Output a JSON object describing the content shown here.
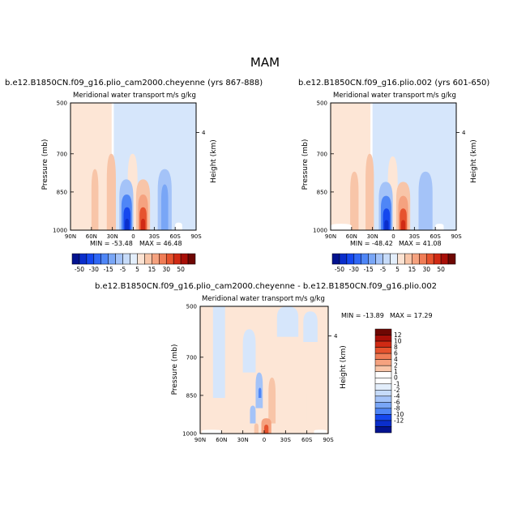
{
  "figure": {
    "title": "MAM"
  },
  "chart_data": [
    {
      "type": "heatmap",
      "panel": "upper-left",
      "title": "b.e12.B1850CN.f09_g16.plio_cam2000.cheyenne (yrs 867-888)",
      "subtitle_left": "Meridional water transport",
      "subtitle_right": "m/s g/kg",
      "xlabel": "",
      "ylabel": "Pressure (mb)",
      "right_label": "Height (km)",
      "x_ticks": [
        "90N",
        "60N",
        "30N",
        "0",
        "30S",
        "60S",
        "90S"
      ],
      "x_values": [
        90,
        60,
        30,
        0,
        -30,
        -60,
        -90
      ],
      "y_ticks": [
        "500",
        "700",
        "850",
        "1000"
      ],
      "y_values": [
        500,
        700,
        850,
        1000
      ],
      "ylim": [
        500,
        1000
      ],
      "right_ticks": [
        "4"
      ],
      "right_tick_pressure": [
        616
      ],
      "min_text": "MIN = -53.48",
      "max_text": "MAX =  46.48",
      "min": -53.48,
      "max": 46.48,
      "features": [
        {
          "lat": 90,
          "lat2": 31,
          "p": 500,
          "p2": 1000,
          "level": 1
        },
        {
          "lat": 28,
          "lat2": -90,
          "p": 500,
          "p2": 1000,
          "level": -1
        },
        {
          "lat": 60,
          "lat2": 50,
          "p": 760,
          "p2": 1000,
          "level": 2
        },
        {
          "lat": 38,
          "lat2": 25,
          "p": 700,
          "p2": 1000,
          "level": 2
        },
        {
          "lat": 8,
          "lat2": -6,
          "p": 700,
          "p2": 1000,
          "level": 1
        },
        {
          "lat": -35,
          "lat2": -55,
          "p": 760,
          "p2": 1000,
          "level": -2
        },
        {
          "lat": -40,
          "lat2": -50,
          "p": 820,
          "p2": 1000,
          "level": -3
        },
        {
          "lat": 20,
          "lat2": 0,
          "p": 800,
          "p2": 1000,
          "level": -2
        },
        {
          "lat": 17,
          "lat2": 2,
          "p": 860,
          "p2": 1000,
          "level": -4
        },
        {
          "lat": 14,
          "lat2": 4,
          "p": 910,
          "p2": 1000,
          "level": -6
        },
        {
          "lat": 12,
          "lat2": 6,
          "p": 955,
          "p2": 1000,
          "level": -8
        },
        {
          "lat": -4,
          "lat2": -24,
          "p": 800,
          "p2": 1000,
          "level": 2
        },
        {
          "lat": -7,
          "lat2": -21,
          "p": 860,
          "p2": 1000,
          "level": 4
        },
        {
          "lat": -9,
          "lat2": -19,
          "p": 910,
          "p2": 1000,
          "level": 6
        },
        {
          "lat": -11,
          "lat2": -17,
          "p": 955,
          "p2": 1000,
          "level": 8
        },
        {
          "lat": -60,
          "lat2": -70,
          "p": 970,
          "p2": 1000,
          "level": 0
        }
      ]
    },
    {
      "type": "heatmap",
      "panel": "upper-right",
      "title": "b.e12.B1850CN.f09_g16.plio.002 (yrs 601-650)",
      "subtitle_left": "Meridional water transport",
      "subtitle_right": "m/s g/kg",
      "xlabel": "",
      "ylabel": "Pressure (mb)",
      "right_label": "Height (km)",
      "x_ticks": [
        "90N",
        "60N",
        "30N",
        "0",
        "30S",
        "60S",
        "90S"
      ],
      "x_values": [
        90,
        60,
        30,
        0,
        -30,
        -60,
        -90
      ],
      "y_ticks": [
        "500",
        "700",
        "850",
        "1000"
      ],
      "y_values": [
        500,
        700,
        850,
        1000
      ],
      "ylim": [
        500,
        1000
      ],
      "right_ticks": [
        "4"
      ],
      "right_tick_pressure": [
        616
      ],
      "min_text": "MIN = -48.42",
      "max_text": "MAX =  41.08",
      "min": -48.42,
      "max": 41.08,
      "features": [
        {
          "lat": 90,
          "lat2": 33,
          "p": 500,
          "p2": 1000,
          "level": 1
        },
        {
          "lat": 30,
          "lat2": -90,
          "p": 500,
          "p2": 1000,
          "level": -1
        },
        {
          "lat": 62,
          "lat2": 50,
          "p": 770,
          "p2": 1000,
          "level": 2
        },
        {
          "lat": 40,
          "lat2": 28,
          "p": 700,
          "p2": 1000,
          "level": 2
        },
        {
          "lat": 8,
          "lat2": -6,
          "p": 710,
          "p2": 1000,
          "level": 1
        },
        {
          "lat": -36,
          "lat2": -56,
          "p": 770,
          "p2": 1000,
          "level": -2
        },
        {
          "lat": 21,
          "lat2": 1,
          "p": 810,
          "p2": 1000,
          "level": -2
        },
        {
          "lat": 18,
          "lat2": 3,
          "p": 865,
          "p2": 1000,
          "level": -4
        },
        {
          "lat": 15,
          "lat2": 5,
          "p": 915,
          "p2": 1000,
          "level": -6
        },
        {
          "lat": 13,
          "lat2": 7,
          "p": 960,
          "p2": 1000,
          "level": -8
        },
        {
          "lat": -4,
          "lat2": -24,
          "p": 810,
          "p2": 1000,
          "level": 2
        },
        {
          "lat": -7,
          "lat2": -21,
          "p": 865,
          "p2": 1000,
          "level": 4
        },
        {
          "lat": -9,
          "lat2": -19,
          "p": 915,
          "p2": 1000,
          "level": 6
        },
        {
          "lat": -11,
          "lat2": -17,
          "p": 960,
          "p2": 1000,
          "level": 8
        },
        {
          "lat": 90,
          "lat2": 60,
          "p": 975,
          "p2": 1000,
          "level": 0
        },
        {
          "lat": -60,
          "lat2": -72,
          "p": 975,
          "p2": 1000,
          "level": 0
        }
      ]
    },
    {
      "type": "heatmap",
      "panel": "bottom-difference",
      "title": "b.e12.B1850CN.f09_g16.plio_cam2000.cheyenne - b.e12.B1850CN.f09_g16.plio.002",
      "subtitle_left": "Meridional water transport",
      "subtitle_right": "m/s g/kg",
      "xlabel": "",
      "ylabel": "Pressure (mb)",
      "right_label": "Height (km)",
      "x_ticks": [
        "90N",
        "60N",
        "30N",
        "0",
        "30S",
        "60S",
        "90S"
      ],
      "x_values": [
        90,
        60,
        30,
        0,
        -30,
        -60,
        -90
      ],
      "y_ticks": [
        "500",
        "700",
        "850",
        "1000"
      ],
      "y_values": [
        500,
        700,
        850,
        1000
      ],
      "ylim": [
        500,
        1000
      ],
      "right_ticks": [
        "4"
      ],
      "right_tick_pressure": [
        616
      ],
      "min_text": "MIN = -13.89",
      "max_text": "MAX =  17.29",
      "min": -13.89,
      "max": 17.29,
      "features": [
        {
          "lat": 90,
          "lat2": -90,
          "p": 500,
          "p2": 1000,
          "level": 1
        },
        {
          "lat": 72,
          "lat2": 55,
          "p": 500,
          "p2": 860,
          "level": -1
        },
        {
          "lat": -18,
          "lat2": -48,
          "p": 500,
          "p2": 620,
          "level": -1
        },
        {
          "lat": -55,
          "lat2": -75,
          "p": 520,
          "p2": 640,
          "level": -1
        },
        {
          "lat": 30,
          "lat2": 12,
          "p": 590,
          "p2": 760,
          "level": -1
        },
        {
          "lat": 12,
          "lat2": 2,
          "p": 760,
          "p2": 900,
          "level": -2
        },
        {
          "lat": 8,
          "lat2": 4,
          "p": 820,
          "p2": 860,
          "level": -4
        },
        {
          "lat": -6,
          "lat2": -16,
          "p": 780,
          "p2": 960,
          "level": 2
        },
        {
          "lat": -35,
          "lat2": -60,
          "p": 780,
          "p2": 960,
          "level": 1
        },
        {
          "lat": 20,
          "lat2": 12,
          "p": 890,
          "p2": 960,
          "level": -2
        },
        {
          "lat": 4,
          "lat2": -10,
          "p": 940,
          "p2": 1000,
          "level": 4
        },
        {
          "lat": 0,
          "lat2": -6,
          "p": 965,
          "p2": 1000,
          "level": 6
        },
        {
          "lat": 14,
          "lat2": 8,
          "p": 960,
          "p2": 1000,
          "level": 2
        },
        {
          "lat": 88,
          "lat2": 60,
          "p": 985,
          "p2": 1000,
          "level": 0
        },
        {
          "lat": -70,
          "lat2": -88,
          "p": 985,
          "p2": 1000,
          "level": 0
        }
      ]
    },
    {
      "type": "colorbar",
      "orientation": "horizontal",
      "panel": "upper",
      "levels": [
        -50,
        -40,
        -30,
        -20,
        -15,
        -10,
        -5,
        -2,
        2,
        5,
        10,
        15,
        20,
        25,
        30,
        40,
        50
      ],
      "labels": [
        "-50",
        "-30",
        "-15",
        "-5",
        "5",
        "15",
        "30",
        "50"
      ],
      "colors": [
        "#03138f",
        "#0a2ecb",
        "#1547ee",
        "#2f67f5",
        "#4f86f6",
        "#79a6f6",
        "#a4c3f8",
        "#c6dbf9",
        "#e3eefb",
        "#fbe3d3",
        "#f8c5a8",
        "#f5a27f",
        "#f07d57",
        "#e6532e",
        "#d02a14",
        "#a80f08",
        "#6e0703"
      ]
    },
    {
      "type": "colorbar",
      "orientation": "vertical",
      "panel": "difference",
      "levels": [
        -12,
        -10,
        -8,
        -6,
        -4,
        -2,
        -1,
        0,
        1,
        2,
        4,
        6,
        8,
        10,
        12
      ],
      "labels": [
        "12",
        "10",
        "8",
        "6",
        "4",
        "2",
        "1",
        "0",
        "-1",
        "-2",
        "-4",
        "-6",
        "-8",
        "-10",
        "-12"
      ],
      "colors": [
        "#6e0703",
        "#a80f08",
        "#d02a14",
        "#e6532e",
        "#f07d57",
        "#f5a27f",
        "#f8c5a8",
        "#fbe3d3",
        "#ffffff",
        "#e3eefb",
        "#c6dbf9",
        "#a4c3f8",
        "#79a6f6",
        "#4f86f6",
        "#1547ee",
        "#0a2ecb",
        "#03138f"
      ]
    }
  ]
}
